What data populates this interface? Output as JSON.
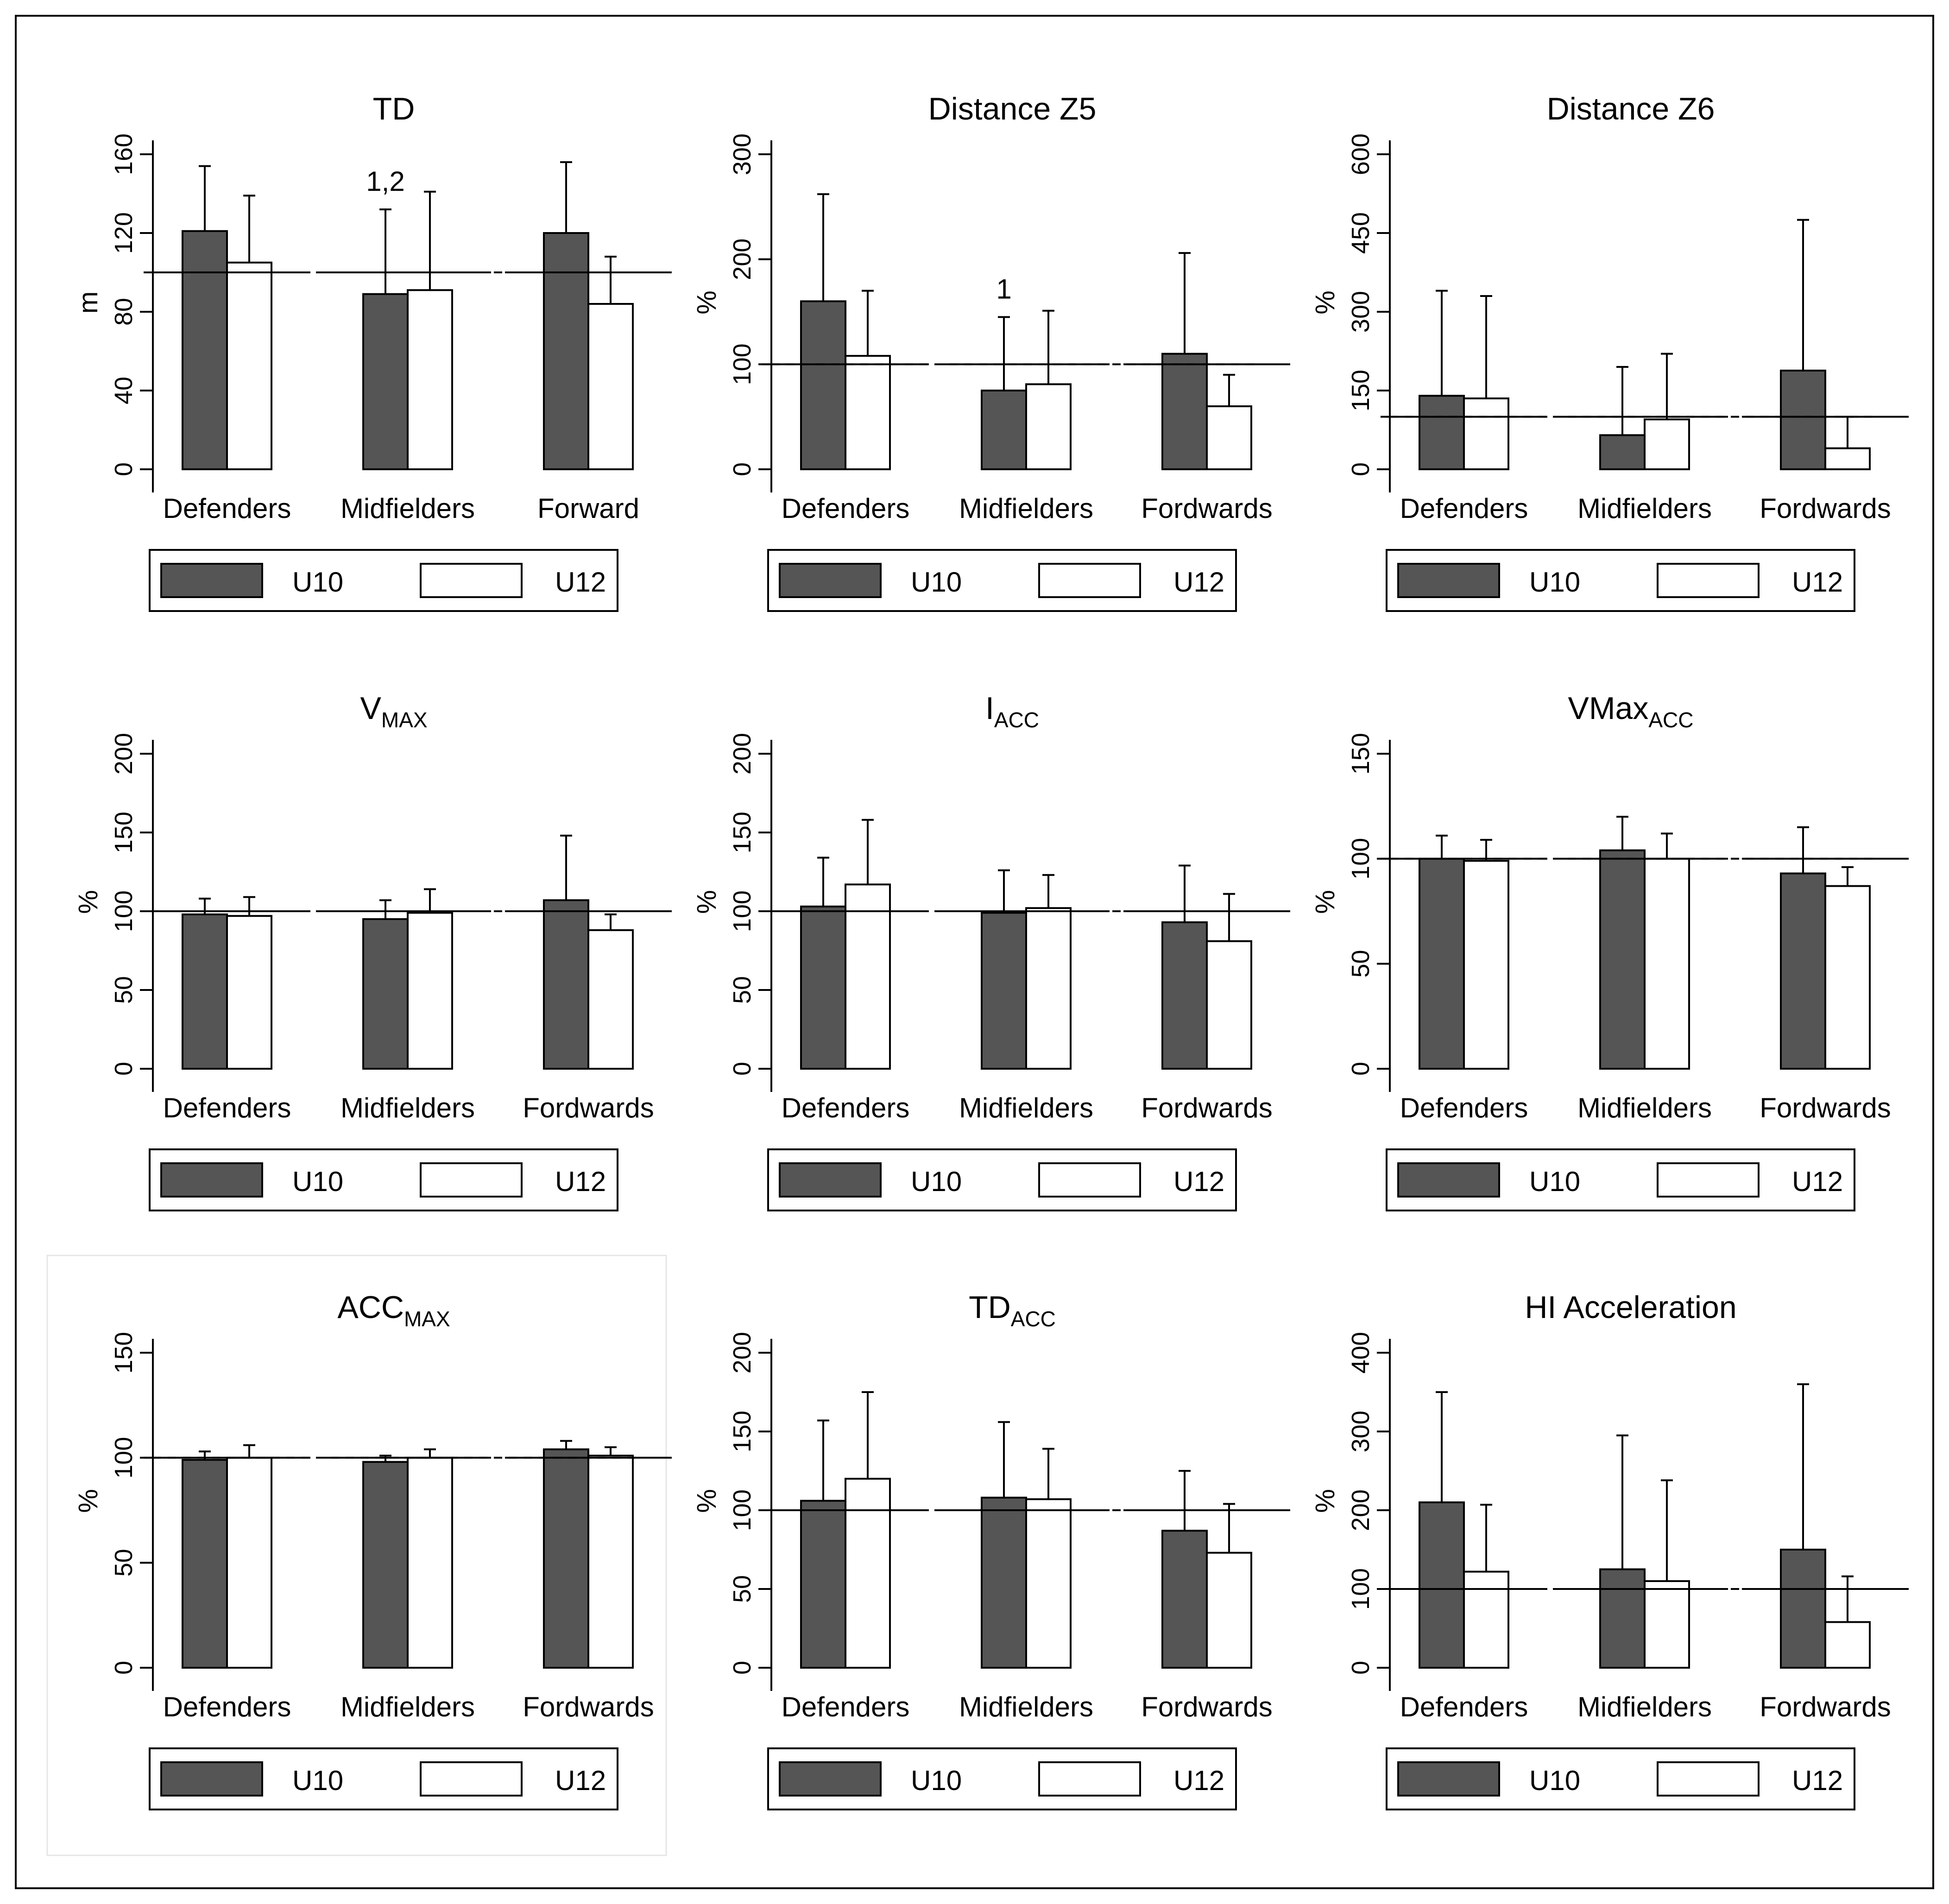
{
  "colors": {
    "u10_fill": "#555555",
    "u12_fill": "#ffffff",
    "stroke": "#000000"
  },
  "legend": {
    "labels": [
      "U10",
      "U12"
    ]
  },
  "chart_data": [
    {
      "type": "bar",
      "title": "TD",
      "title_sub": "",
      "ylabel": "m",
      "categories": [
        "Defenders",
        "Midfielders",
        "Forward"
      ],
      "ylim": [
        0,
        160
      ],
      "yticks": [
        0,
        40,
        80,
        120,
        160
      ],
      "reference_line": 100,
      "series": [
        {
          "name": "U10",
          "values": [
            121,
            89,
            120
          ],
          "errors": [
            33,
            43,
            36
          ]
        },
        {
          "name": "U12",
          "values": [
            105,
            91,
            84
          ],
          "errors": [
            34,
            50,
            24
          ]
        }
      ],
      "annotations": [
        {
          "category": "Midfielders",
          "text": "1,2"
        }
      ]
    },
    {
      "type": "bar",
      "title": "Distance Z5",
      "title_sub": "",
      "ylabel": "%",
      "categories": [
        "Defenders",
        "Midfielders",
        "Fordwards"
      ],
      "ylim": [
        0,
        300
      ],
      "yticks": [
        0,
        100,
        200,
        300
      ],
      "reference_line": 100,
      "series": [
        {
          "name": "U10",
          "values": [
            160,
            75,
            110
          ],
          "errors": [
            102,
            70,
            96
          ]
        },
        {
          "name": "U12",
          "values": [
            108,
            81,
            60
          ],
          "errors": [
            62,
            70,
            30
          ]
        }
      ],
      "annotations": [
        {
          "category": "Midfielders",
          "text": "1"
        }
      ]
    },
    {
      "type": "bar",
      "title": "Distance Z6",
      "title_sub": "",
      "ylabel": "%",
      "categories": [
        "Defenders",
        "Midfielders",
        "Fordwards"
      ],
      "ylim": [
        0,
        600
      ],
      "yticks": [
        0,
        150,
        300,
        450,
        600
      ],
      "reference_line": 100,
      "series": [
        {
          "name": "U10",
          "values": [
            140,
            65,
            188
          ],
          "errors": [
            200,
            130,
            287
          ]
        },
        {
          "name": "U12",
          "values": [
            135,
            95,
            40
          ],
          "errors": [
            195,
            125,
            60
          ]
        }
      ],
      "annotations": []
    },
    {
      "type": "bar",
      "title": "V",
      "title_sub": "MAX",
      "ylabel": "%",
      "categories": [
        "Defenders",
        "Midfielders",
        "Fordwards"
      ],
      "ylim": [
        0,
        200
      ],
      "yticks": [
        0,
        50,
        100,
        150,
        200
      ],
      "reference_line": 100,
      "series": [
        {
          "name": "U10",
          "values": [
            98,
            95,
            107
          ],
          "errors": [
            10,
            12,
            41
          ]
        },
        {
          "name": "U12",
          "values": [
            97,
            99,
            88
          ],
          "errors": [
            12,
            15,
            10
          ]
        }
      ],
      "annotations": []
    },
    {
      "type": "bar",
      "title": "I",
      "title_sub": "ACC",
      "ylabel": "%",
      "categories": [
        "Defenders",
        "Midfielders",
        "Fordwards"
      ],
      "ylim": [
        0,
        200
      ],
      "yticks": [
        0,
        50,
        100,
        150,
        200
      ],
      "reference_line": 100,
      "series": [
        {
          "name": "U10",
          "values": [
            103,
            99,
            93
          ],
          "errors": [
            31,
            27,
            36
          ]
        },
        {
          "name": "U12",
          "values": [
            117,
            102,
            81
          ],
          "errors": [
            41,
            21,
            30
          ]
        }
      ],
      "annotations": []
    },
    {
      "type": "bar",
      "title": "VMax",
      "title_sub": "ACC",
      "ylabel": "%",
      "categories": [
        "Defenders",
        "Midfielders",
        "Fordwards"
      ],
      "ylim": [
        0,
        150
      ],
      "yticks": [
        0,
        50,
        100,
        150
      ],
      "reference_line": 100,
      "series": [
        {
          "name": "U10",
          "values": [
            100,
            104,
            93
          ],
          "errors": [
            11,
            16,
            22
          ]
        },
        {
          "name": "U12",
          "values": [
            99,
            100,
            87
          ],
          "errors": [
            10,
            12,
            9
          ]
        }
      ],
      "annotations": []
    },
    {
      "type": "bar",
      "title": "ACC",
      "title_sub": "MAX",
      "ylabel": "%",
      "categories": [
        "Defenders",
        "Midfielders",
        "Fordwards"
      ],
      "ylim": [
        0,
        150
      ],
      "yticks": [
        0,
        50,
        100,
        150
      ],
      "reference_line": 100,
      "series": [
        {
          "name": "U10",
          "values": [
            99,
            98,
            104
          ],
          "errors": [
            4,
            3,
            4
          ]
        },
        {
          "name": "U12",
          "values": [
            100,
            100,
            101
          ],
          "errors": [
            6,
            4,
            4
          ]
        }
      ],
      "annotations": []
    },
    {
      "type": "bar",
      "title": "TD",
      "title_sub": "ACC",
      "ylabel": "%",
      "categories": [
        "Defenders",
        "Midfielders",
        "Fordwards"
      ],
      "ylim": [
        0,
        200
      ],
      "yticks": [
        0,
        50,
        100,
        150,
        200
      ],
      "reference_line": 100,
      "series": [
        {
          "name": "U10",
          "values": [
            106,
            108,
            87
          ],
          "errors": [
            51,
            48,
            38
          ]
        },
        {
          "name": "U12",
          "values": [
            120,
            107,
            73
          ],
          "errors": [
            55,
            32,
            31
          ]
        }
      ],
      "annotations": []
    },
    {
      "type": "bar",
      "title": "HI Acceleration",
      "title_sub": "",
      "ylabel": "%",
      "categories": [
        "Defenders",
        "Midfielders",
        "Fordwards"
      ],
      "ylim": [
        0,
        400
      ],
      "yticks": [
        0,
        100,
        200,
        300,
        400
      ],
      "reference_line": 100,
      "series": [
        {
          "name": "U10",
          "values": [
            210,
            125,
            150
          ],
          "errors": [
            140,
            170,
            210
          ]
        },
        {
          "name": "U12",
          "values": [
            122,
            110,
            58
          ],
          "errors": [
            85,
            128,
            58
          ]
        }
      ],
      "annotations": []
    }
  ]
}
